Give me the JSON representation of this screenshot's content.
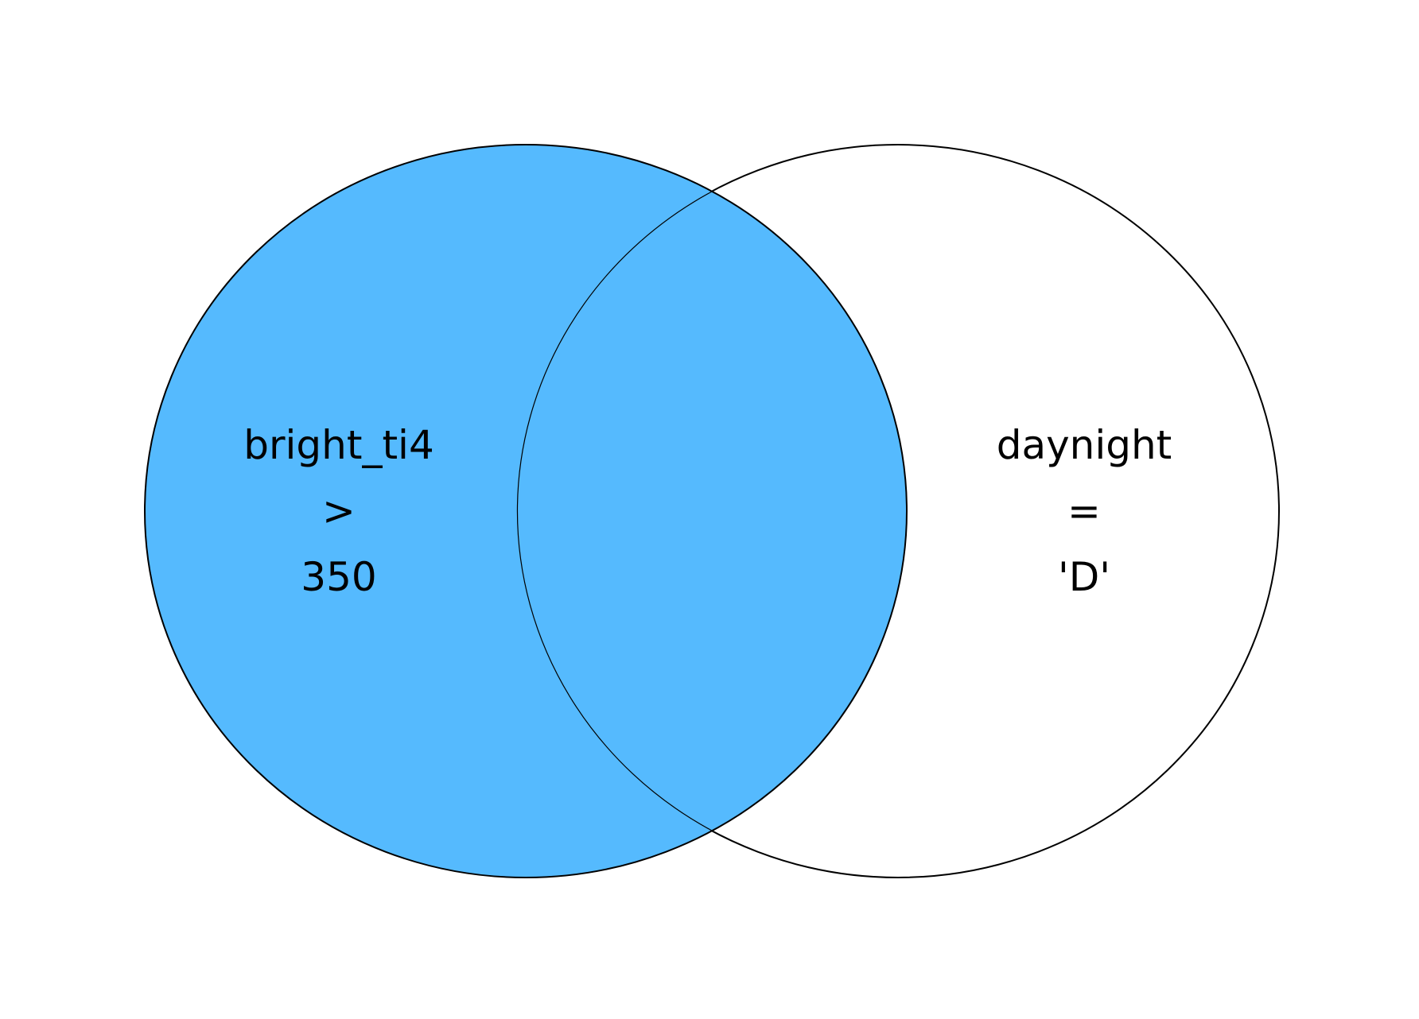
{
  "diagram": {
    "type": "venn",
    "shaded_region": "left set (including intersection)",
    "colors": {
      "shaded_fill": "#55BAFE",
      "unshaded_fill": "#FFFFFF",
      "outline": "#000000"
    },
    "left_set": {
      "lines": [
        "bright_ti4",
        ">",
        "350"
      ]
    },
    "right_set": {
      "lines": [
        "daynight",
        "=",
        "'D'"
      ]
    }
  }
}
